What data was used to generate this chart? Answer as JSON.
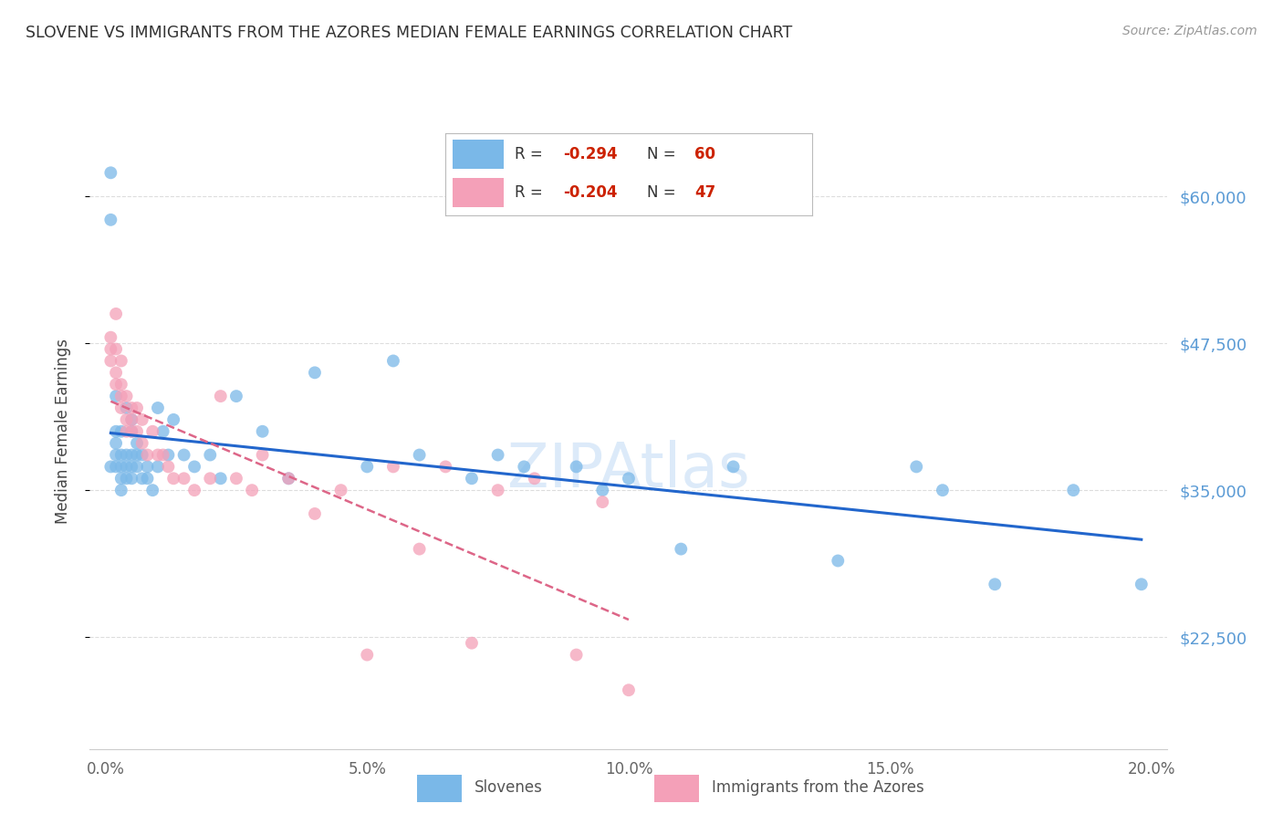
{
  "title": "SLOVENE VS IMMIGRANTS FROM THE AZORES MEDIAN FEMALE EARNINGS CORRELATION CHART",
  "source": "Source: ZipAtlas.com",
  "xlabel_ticks": [
    "0.0%",
    "5.0%",
    "10.0%",
    "15.0%",
    "20.0%"
  ],
  "xlabel_tick_vals": [
    0.0,
    0.05,
    0.1,
    0.15,
    0.2
  ],
  "ylabel": "Median Female Earnings",
  "ylabel_ticks": [
    22500,
    35000,
    47500,
    60000
  ],
  "ylabel_tick_labels": [
    "$22,500",
    "$35,000",
    "$47,500",
    "$60,000"
  ],
  "ylim": [
    13000,
    67000
  ],
  "xlim": [
    -0.003,
    0.203
  ],
  "slovenes_color": "#7ab8e8",
  "azores_color": "#f4a0b8",
  "slovenes_line_color": "#2266cc",
  "azores_line_color": "#dd6688",
  "background_color": "#ffffff",
  "grid_color": "#dddddd",
  "watermark": "ZIPAtlas",
  "slovenes_x": [
    0.001,
    0.001,
    0.001,
    0.002,
    0.002,
    0.002,
    0.002,
    0.002,
    0.003,
    0.003,
    0.003,
    0.003,
    0.003,
    0.004,
    0.004,
    0.004,
    0.004,
    0.005,
    0.005,
    0.005,
    0.005,
    0.005,
    0.006,
    0.006,
    0.006,
    0.007,
    0.007,
    0.008,
    0.008,
    0.009,
    0.01,
    0.01,
    0.011,
    0.012,
    0.013,
    0.015,
    0.017,
    0.02,
    0.022,
    0.025,
    0.03,
    0.035,
    0.04,
    0.05,
    0.055,
    0.06,
    0.07,
    0.075,
    0.08,
    0.09,
    0.095,
    0.1,
    0.11,
    0.12,
    0.14,
    0.155,
    0.16,
    0.17,
    0.185,
    0.198
  ],
  "slovenes_y": [
    62000,
    58000,
    37000,
    43000,
    40000,
    39000,
    38000,
    37000,
    40000,
    38000,
    37000,
    36000,
    35000,
    42000,
    38000,
    37000,
    36000,
    41000,
    40000,
    38000,
    37000,
    36000,
    39000,
    38000,
    37000,
    38000,
    36000,
    37000,
    36000,
    35000,
    42000,
    37000,
    40000,
    38000,
    41000,
    38000,
    37000,
    38000,
    36000,
    43000,
    40000,
    36000,
    45000,
    37000,
    46000,
    38000,
    36000,
    38000,
    37000,
    37000,
    35000,
    36000,
    30000,
    37000,
    29000,
    37000,
    35000,
    27000,
    35000,
    27000
  ],
  "azores_x": [
    0.001,
    0.001,
    0.001,
    0.002,
    0.002,
    0.002,
    0.002,
    0.003,
    0.003,
    0.003,
    0.003,
    0.004,
    0.004,
    0.004,
    0.005,
    0.005,
    0.005,
    0.006,
    0.006,
    0.007,
    0.007,
    0.008,
    0.009,
    0.01,
    0.011,
    0.012,
    0.013,
    0.015,
    0.017,
    0.02,
    0.022,
    0.025,
    0.028,
    0.03,
    0.035,
    0.04,
    0.045,
    0.05,
    0.055,
    0.06,
    0.065,
    0.07,
    0.075,
    0.082,
    0.09,
    0.095,
    0.1
  ],
  "azores_y": [
    48000,
    47000,
    46000,
    50000,
    47000,
    45000,
    44000,
    46000,
    44000,
    43000,
    42000,
    43000,
    41000,
    40000,
    42000,
    41000,
    40000,
    42000,
    40000,
    41000,
    39000,
    38000,
    40000,
    38000,
    38000,
    37000,
    36000,
    36000,
    35000,
    36000,
    43000,
    36000,
    35000,
    38000,
    36000,
    33000,
    35000,
    21000,
    37000,
    30000,
    37000,
    22000,
    35000,
    36000,
    21000,
    34000,
    18000
  ]
}
